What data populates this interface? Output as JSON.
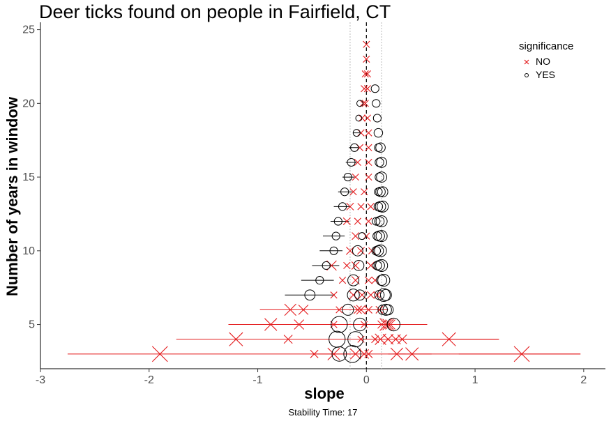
{
  "chart_data": {
    "type": "scatter",
    "title": "Deer ticks found on people in Fairfield, CT",
    "xlabel": "slope",
    "ylabel": "Number of years in window",
    "caption": "Stability Time: 17",
    "xlim": [
      -3,
      2.2
    ],
    "ylim": [
      2,
      25.5
    ],
    "xticks": [
      -3,
      -2,
      -1,
      0,
      1,
      2
    ],
    "yticks": [
      5,
      10,
      15,
      20,
      25
    ],
    "vlines": {
      "dashed": 0,
      "dotted": [
        -0.15,
        0.14
      ]
    },
    "grid": false,
    "legend": {
      "title": "significance",
      "position": "top-right",
      "entries": [
        {
          "label": "NO",
          "shape": "x",
          "color": "#e41a1c"
        },
        {
          "label": "YES",
          "shape": "circle",
          "color": "#000000"
        }
      ]
    },
    "series": [
      {
        "name": "NO",
        "points": [
          {
            "x": -1.9,
            "y": 3,
            "lo": -2.75,
            "hi": 1.97,
            "size": 1.0
          },
          {
            "x": 1.43,
            "y": 3,
            "lo": 0.85,
            "hi": 1.97,
            "size": 1.0
          },
          {
            "x": 0.42,
            "y": 3,
            "lo": 0.25,
            "hi": 0.6,
            "size": 0.8
          },
          {
            "x": 0.28,
            "y": 3,
            "lo": 0.2,
            "hi": 0.36,
            "size": 0.75
          },
          {
            "x": -0.3,
            "y": 3,
            "lo": -0.5,
            "hi": -0.1,
            "size": 0.75
          },
          {
            "x": -0.1,
            "y": 3,
            "size": 0.6
          },
          {
            "x": -0.02,
            "y": 3,
            "size": 0.5
          },
          {
            "x": 0.02,
            "y": 3,
            "size": 0.4
          },
          {
            "x": -0.48,
            "y": 3,
            "size": 0.4
          },
          {
            "x": -1.2,
            "y": 4,
            "lo": -1.75,
            "hi": 1.22,
            "size": 0.85
          },
          {
            "x": 0.76,
            "y": 4,
            "lo": 0.3,
            "hi": 1.22,
            "size": 0.85
          },
          {
            "x": -0.72,
            "y": 4,
            "size": 0.45
          },
          {
            "x": 0.13,
            "y": 4,
            "size": 0.65
          },
          {
            "x": 0.2,
            "y": 4,
            "size": 0.6
          },
          {
            "x": 0.27,
            "y": 4,
            "size": 0.55
          },
          {
            "x": 0.33,
            "y": 4,
            "size": 0.5
          },
          {
            "x": 0.08,
            "y": 4,
            "size": 0.35
          },
          {
            "x": -0.05,
            "y": 4,
            "size": 0.3
          },
          {
            "x": -0.88,
            "y": 5,
            "lo": -1.27,
            "hi": 0.56,
            "size": 0.75
          },
          {
            "x": -0.62,
            "y": 5,
            "size": 0.55
          },
          {
            "x": 0.18,
            "y": 5,
            "size": 0.75
          },
          {
            "x": 0.2,
            "y": 5,
            "size": 0.65
          },
          {
            "x": 0.22,
            "y": 5,
            "size": 0.55
          },
          {
            "x": 0.14,
            "y": 5,
            "size": 0.4
          },
          {
            "x": -0.3,
            "y": 5,
            "size": 0.3
          },
          {
            "x": -0.02,
            "y": 5,
            "size": 0.3
          },
          {
            "x": -0.7,
            "y": 6,
            "lo": -0.98,
            "hi": 0.2,
            "size": 0.7
          },
          {
            "x": -0.58,
            "y": 6,
            "size": 0.55
          },
          {
            "x": -0.05,
            "y": 6,
            "size": 0.5
          },
          {
            "x": -0.08,
            "y": 6,
            "size": 0.4
          },
          {
            "x": 0.02,
            "y": 6,
            "size": 0.35
          },
          {
            "x": 0.12,
            "y": 6,
            "size": 0.35
          },
          {
            "x": -0.25,
            "y": 6,
            "size": 0.3
          },
          {
            "x": -0.12,
            "y": 7,
            "size": 0.45
          },
          {
            "x": -0.04,
            "y": 7,
            "size": 0.4
          },
          {
            "x": 0.04,
            "y": 7,
            "size": 0.35
          },
          {
            "x": 0.1,
            "y": 7,
            "size": 0.3
          },
          {
            "x": -0.3,
            "y": 7,
            "size": 0.3
          },
          {
            "x": -0.1,
            "y": 8,
            "size": 0.4
          },
          {
            "x": 0.02,
            "y": 8,
            "size": 0.35
          },
          {
            "x": 0.08,
            "y": 8,
            "size": 0.3
          },
          {
            "x": -0.22,
            "y": 8,
            "size": 0.3
          },
          {
            "x": -0.32,
            "y": 9,
            "size": 0.55
          },
          {
            "x": -0.1,
            "y": 9,
            "size": 0.4
          },
          {
            "x": 0.04,
            "y": 9,
            "size": 0.35
          },
          {
            "x": -0.18,
            "y": 9,
            "size": 0.3
          },
          {
            "x": -0.15,
            "y": 10,
            "size": 0.4
          },
          {
            "x": -0.05,
            "y": 10,
            "size": 0.35
          },
          {
            "x": 0.05,
            "y": 10,
            "size": 0.3
          },
          {
            "x": -0.1,
            "y": 11,
            "size": 0.35
          },
          {
            "x": 0.0,
            "y": 11,
            "size": 0.3
          },
          {
            "x": -0.18,
            "y": 12,
            "size": 0.35
          },
          {
            "x": -0.08,
            "y": 12,
            "size": 0.3
          },
          {
            "x": 0.02,
            "y": 12,
            "size": 0.3
          },
          {
            "x": -0.15,
            "y": 13,
            "size": 0.35
          },
          {
            "x": -0.05,
            "y": 13,
            "size": 0.3
          },
          {
            "x": 0.04,
            "y": 13,
            "size": 0.3
          },
          {
            "x": -0.12,
            "y": 14,
            "size": 0.3
          },
          {
            "x": -0.02,
            "y": 14,
            "size": 0.3
          },
          {
            "x": -0.1,
            "y": 15,
            "size": 0.3
          },
          {
            "x": 0.02,
            "y": 15,
            "size": 0.3
          },
          {
            "x": -0.08,
            "y": 16,
            "size": 0.3
          },
          {
            "x": 0.02,
            "y": 16,
            "size": 0.3
          },
          {
            "x": -0.06,
            "y": 17,
            "size": 0.3
          },
          {
            "x": 0.02,
            "y": 17,
            "size": 0.3
          },
          {
            "x": -0.05,
            "y": 18,
            "size": 0.3
          },
          {
            "x": 0.02,
            "y": 18,
            "size": 0.3
          },
          {
            "x": -0.04,
            "y": 19,
            "size": 0.3
          },
          {
            "x": 0.01,
            "y": 19,
            "size": 0.3
          },
          {
            "x": -0.03,
            "y": 20,
            "size": 0.3
          },
          {
            "x": -0.01,
            "y": 20,
            "size": 0.3
          },
          {
            "x": -0.02,
            "y": 21,
            "size": 0.3
          },
          {
            "x": 0.01,
            "y": 21,
            "size": 0.3
          },
          {
            "x": -0.01,
            "y": 22,
            "size": 0.3
          },
          {
            "x": 0.01,
            "y": 22,
            "size": 0.3
          },
          {
            "x": 0.0,
            "y": 23,
            "size": 0.3
          },
          {
            "x": 0.0,
            "y": 24,
            "size": 0.3
          }
        ]
      },
      {
        "name": "YES",
        "points": [
          {
            "x": -0.13,
            "y": 3,
            "size": 0.85
          },
          {
            "x": -0.25,
            "y": 3,
            "size": 0.7
          },
          {
            "x": -0.27,
            "y": 4,
            "size": 0.8
          },
          {
            "x": -0.1,
            "y": 4,
            "size": 0.75
          },
          {
            "x": -0.25,
            "y": 5,
            "size": 0.8
          },
          {
            "x": -0.06,
            "y": 5,
            "size": 0.6
          },
          {
            "x": 0.25,
            "y": 5,
            "size": 0.6
          },
          {
            "x": -0.17,
            "y": 6,
            "size": 0.5
          },
          {
            "x": 0.18,
            "y": 6,
            "size": 0.5
          },
          {
            "x": 0.2,
            "y": 6,
            "size": 0.45
          },
          {
            "x": 0.15,
            "y": 6,
            "size": 0.4
          },
          {
            "x": -0.52,
            "y": 7,
            "lo": -0.75,
            "hi": -0.3,
            "size": 0.45
          },
          {
            "x": -0.12,
            "y": 7,
            "size": 0.55
          },
          {
            "x": -0.06,
            "y": 7,
            "size": 0.45
          },
          {
            "x": 0.16,
            "y": 7,
            "size": 0.6
          },
          {
            "x": 0.18,
            "y": 7,
            "size": 0.5
          },
          {
            "x": 0.12,
            "y": 7,
            "size": 0.4
          },
          {
            "x": -0.43,
            "y": 8,
            "lo": -0.6,
            "hi": -0.3,
            "size": 0.3
          },
          {
            "x": -0.12,
            "y": 8,
            "size": 0.5
          },
          {
            "x": 0.16,
            "y": 8,
            "size": 0.55
          },
          {
            "x": 0.14,
            "y": 8,
            "size": 0.45
          },
          {
            "x": -0.37,
            "y": 9,
            "lo": -0.5,
            "hi": -0.25,
            "size": 0.3
          },
          {
            "x": -0.07,
            "y": 9,
            "size": 0.45
          },
          {
            "x": 0.14,
            "y": 9,
            "size": 0.55
          },
          {
            "x": 0.12,
            "y": 9,
            "size": 0.45
          },
          {
            "x": 0.1,
            "y": 9,
            "size": 0.35
          },
          {
            "x": -0.3,
            "y": 10,
            "lo": -0.43,
            "hi": -0.22,
            "size": 0.3
          },
          {
            "x": -0.08,
            "y": 10,
            "size": 0.45
          },
          {
            "x": 0.13,
            "y": 10,
            "size": 0.55
          },
          {
            "x": 0.11,
            "y": 10,
            "size": 0.45
          },
          {
            "x": 0.09,
            "y": 10,
            "size": 0.35
          },
          {
            "x": -0.28,
            "y": 11,
            "lo": -0.4,
            "hi": -0.2,
            "size": 0.3
          },
          {
            "x": -0.04,
            "y": 11,
            "size": 0.25
          },
          {
            "x": 0.14,
            "y": 11,
            "size": 0.5
          },
          {
            "x": 0.12,
            "y": 11,
            "size": 0.45
          },
          {
            "x": 0.1,
            "y": 11,
            "size": 0.35
          },
          {
            "x": -0.26,
            "y": 12,
            "lo": -0.33,
            "hi": -0.16,
            "size": 0.3
          },
          {
            "x": 0.14,
            "y": 12,
            "size": 0.5
          },
          {
            "x": 0.12,
            "y": 12,
            "size": 0.4
          },
          {
            "x": 0.09,
            "y": 12,
            "size": 0.3
          },
          {
            "x": -0.22,
            "y": 13,
            "lo": -0.3,
            "hi": -0.15,
            "size": 0.3
          },
          {
            "x": 0.15,
            "y": 13,
            "size": 0.5
          },
          {
            "x": 0.13,
            "y": 13,
            "size": 0.45
          },
          {
            "x": 0.11,
            "y": 13,
            "size": 0.35
          },
          {
            "x": -0.2,
            "y": 14,
            "lo": -0.26,
            "hi": -0.13,
            "size": 0.3
          },
          {
            "x": 0.15,
            "y": 14,
            "size": 0.45
          },
          {
            "x": 0.13,
            "y": 14,
            "size": 0.4
          },
          {
            "x": 0.11,
            "y": 14,
            "size": 0.3
          },
          {
            "x": -0.17,
            "y": 15,
            "lo": -0.22,
            "hi": -0.11,
            "size": 0.3
          },
          {
            "x": 0.14,
            "y": 15,
            "size": 0.45
          },
          {
            "x": 0.12,
            "y": 15,
            "size": 0.35
          },
          {
            "x": -0.14,
            "y": 16,
            "lo": -0.19,
            "hi": -0.09,
            "size": 0.3
          },
          {
            "x": 0.14,
            "y": 16,
            "size": 0.45
          },
          {
            "x": 0.12,
            "y": 16,
            "size": 0.35
          },
          {
            "x": -0.11,
            "y": 17,
            "lo": -0.16,
            "hi": -0.07,
            "size": 0.3
          },
          {
            "x": 0.13,
            "y": 17,
            "size": 0.4
          },
          {
            "x": 0.11,
            "y": 17,
            "size": 0.3
          },
          {
            "x": -0.09,
            "y": 18,
            "lo": -0.12,
            "hi": -0.05,
            "size": 0.25
          },
          {
            "x": 0.11,
            "y": 18,
            "size": 0.35
          },
          {
            "x": -0.07,
            "y": 19,
            "size": 0.2
          },
          {
            "x": 0.1,
            "y": 19,
            "size": 0.3
          },
          {
            "x": -0.06,
            "y": 20,
            "size": 0.2
          },
          {
            "x": 0.09,
            "y": 20,
            "size": 0.3
          },
          {
            "x": 0.08,
            "y": 21,
            "size": 0.3
          }
        ]
      }
    ]
  }
}
